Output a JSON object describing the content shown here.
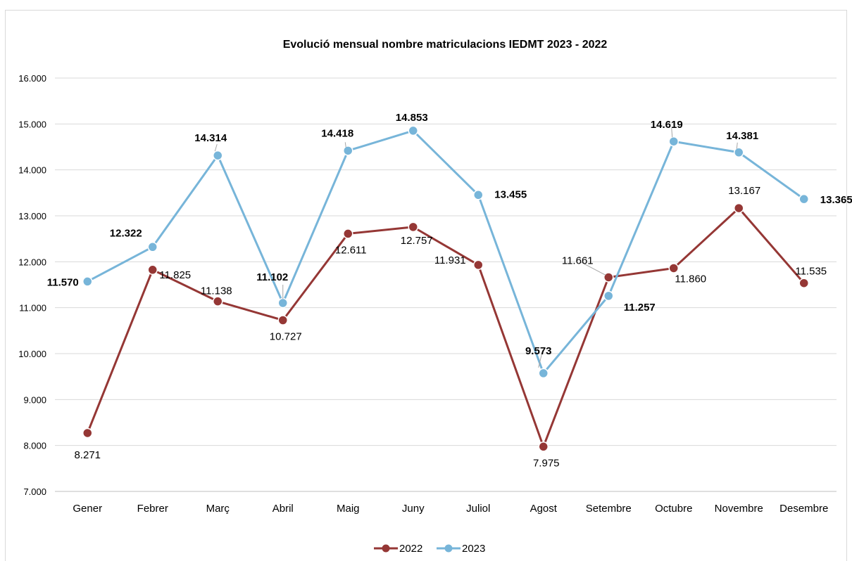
{
  "chart_data": {
    "type": "line",
    "title": "Evolució mensual nombre matriculacions IEDMT  2023 - 2022",
    "categories": [
      "Gener",
      "Febrer",
      "Març",
      "Abril",
      "Maig",
      "Juny",
      "Juliol",
      "Agost",
      "Setembre",
      "Octubre",
      "Novembre",
      "Desembre"
    ],
    "series": [
      {
        "name": "2022",
        "color": "#953735",
        "values": [
          8271,
          11825,
          11138,
          10727,
          12611,
          12757,
          11931,
          7975,
          11661,
          11860,
          13167,
          11535
        ],
        "labels": [
          "8.271",
          "11.825",
          "11.138",
          "10.727",
          "12.611",
          "12.757",
          "11.931",
          "7.975",
          "11.661",
          "11.860",
          "13.167",
          "11.535"
        ]
      },
      {
        "name": "2023",
        "color": "#77b5d9",
        "values": [
          11570,
          12322,
          14314,
          11102,
          14418,
          14853,
          13455,
          9573,
          11257,
          14619,
          14381,
          13365
        ],
        "labels": [
          "11.570",
          "12.322",
          "14.314",
          "11.102",
          "14.418",
          "14.853",
          "13.455",
          "9.573",
          "11.257",
          "14.619",
          "14.381",
          "13.365"
        ]
      }
    ],
    "ylim": [
      7000,
      16000
    ],
    "yticks": [
      7000,
      8000,
      9000,
      10000,
      11000,
      12000,
      13000,
      14000,
      15000,
      16000
    ],
    "ytick_labels": [
      "7.000",
      "8.000",
      "9.000",
      "10.000",
      "11.000",
      "12.000",
      "13.000",
      "14.000",
      "15.000",
      "16.000"
    ],
    "grid": true,
    "legend_position": "bottom"
  }
}
